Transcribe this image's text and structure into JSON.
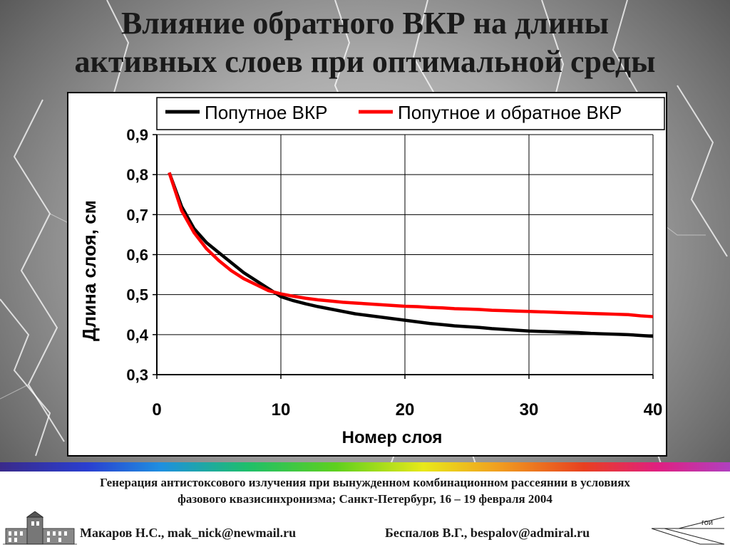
{
  "slide": {
    "title_line1": "Влияние обратного ВКР на длины",
    "title_line2": "активных слоев при оптимальной среды"
  },
  "footer": {
    "conference_line1": "Генерация антистоксового излучения при вынужденном комбинационном рассеянии в условиях",
    "conference_line2": "фазового квазисинхронизма; Санкт-Петербург, 16 – 19 февраля  2004",
    "author_1": "Макаров Н.С., mak_nick@newmail.ru",
    "author_2": "Беспалов В.Г., bespalov@admiral.ru",
    "logo_text": "гои"
  },
  "chart_data": {
    "type": "line",
    "title": "",
    "xlabel": "Номер слоя",
    "ylabel": "Длина слоя, см",
    "xlim": [
      0,
      40
    ],
    "ylim": [
      0.3,
      0.9
    ],
    "x_ticks": [
      0,
      10,
      20,
      30,
      40
    ],
    "x_tick_labels": [
      "0",
      "10",
      "20",
      "30",
      "40"
    ],
    "y_ticks": [
      0.3,
      0.4,
      0.5,
      0.6,
      0.7,
      0.8,
      0.9
    ],
    "y_tick_labels": [
      "0,3",
      "0,4",
      "0,5",
      "0,6",
      "0,7",
      "0,8",
      "0,9"
    ],
    "grid": true,
    "legend_position": "top",
    "series": [
      {
        "name": "Попутное ВКР",
        "color": "#000000",
        "x": [
          1,
          2,
          3,
          4,
          5,
          6,
          7,
          8,
          9,
          10,
          11,
          12,
          13,
          14,
          15,
          16,
          17,
          18,
          19,
          20,
          21,
          22,
          23,
          24,
          25,
          26,
          27,
          28,
          29,
          30,
          31,
          32,
          33,
          34,
          35,
          36,
          37,
          38,
          39,
          40
        ],
        "y": [
          0.805,
          0.72,
          0.665,
          0.63,
          0.605,
          0.58,
          0.555,
          0.535,
          0.515,
          0.495,
          0.485,
          0.477,
          0.47,
          0.464,
          0.458,
          0.452,
          0.448,
          0.444,
          0.44,
          0.436,
          0.432,
          0.428,
          0.425,
          0.422,
          0.42,
          0.418,
          0.415,
          0.413,
          0.411,
          0.409,
          0.408,
          0.407,
          0.406,
          0.405,
          0.403,
          0.402,
          0.401,
          0.4,
          0.398,
          0.396
        ]
      },
      {
        "name": "Попутное и обратное ВКР",
        "color": "#ff0000",
        "x": [
          1,
          2,
          3,
          4,
          5,
          6,
          7,
          8,
          9,
          10,
          11,
          12,
          13,
          14,
          15,
          16,
          17,
          18,
          19,
          20,
          21,
          22,
          23,
          24,
          25,
          26,
          27,
          28,
          29,
          30,
          31,
          32,
          33,
          34,
          35,
          36,
          37,
          38,
          39,
          40
        ],
        "y": [
          0.805,
          0.71,
          0.655,
          0.615,
          0.585,
          0.56,
          0.54,
          0.525,
          0.51,
          0.502,
          0.496,
          0.491,
          0.487,
          0.484,
          0.481,
          0.479,
          0.477,
          0.475,
          0.473,
          0.471,
          0.47,
          0.468,
          0.467,
          0.465,
          0.464,
          0.463,
          0.461,
          0.46,
          0.459,
          0.458,
          0.457,
          0.456,
          0.455,
          0.454,
          0.453,
          0.452,
          0.451,
          0.45,
          0.447,
          0.445
        ]
      }
    ]
  }
}
